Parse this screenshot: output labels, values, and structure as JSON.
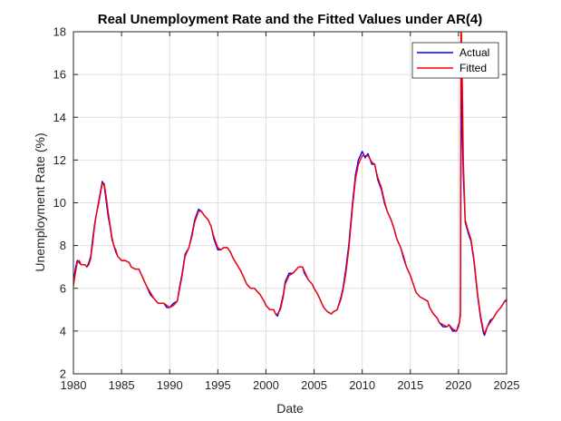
{
  "chart_data": {
    "type": "line",
    "title": "Real Unemployment Rate and the Fitted Values under AR(4)",
    "xlabel": "Date",
    "ylabel": "Unemployment Rate (%)",
    "xlim": [
      1980,
      2025
    ],
    "ylim": [
      2,
      18
    ],
    "xticks": [
      1980,
      1985,
      1990,
      1995,
      2000,
      2005,
      2010,
      2015,
      2020,
      2025
    ],
    "yticks": [
      2,
      4,
      6,
      8,
      10,
      12,
      14,
      16,
      18
    ],
    "grid": true,
    "legend_position": "top-right",
    "series": [
      {
        "name": "Actual",
        "color": "#0000ff",
        "points": [
          [
            1980.0,
            6.3
          ],
          [
            1980.2,
            6.9
          ],
          [
            1980.4,
            7.3
          ],
          [
            1980.6,
            7.2
          ],
          [
            1980.8,
            7.1
          ],
          [
            1981.0,
            7.1
          ],
          [
            1981.2,
            7.1
          ],
          [
            1981.4,
            7.0
          ],
          [
            1981.6,
            7.2
          ],
          [
            1981.8,
            7.5
          ],
          [
            1982.0,
            8.3
          ],
          [
            1982.2,
            9.0
          ],
          [
            1982.4,
            9.5
          ],
          [
            1982.6,
            10.0
          ],
          [
            1982.8,
            10.5
          ],
          [
            1983.0,
            11.0
          ],
          [
            1983.2,
            10.8
          ],
          [
            1983.4,
            10.1
          ],
          [
            1983.6,
            9.4
          ],
          [
            1983.8,
            8.9
          ],
          [
            1984.0,
            8.3
          ],
          [
            1984.2,
            8.0
          ],
          [
            1984.4,
            7.7
          ],
          [
            1984.6,
            7.5
          ],
          [
            1984.8,
            7.4
          ],
          [
            1985.0,
            7.3
          ],
          [
            1985.4,
            7.3
          ],
          [
            1985.8,
            7.2
          ],
          [
            1986.0,
            7.0
          ],
          [
            1986.4,
            6.9
          ],
          [
            1986.8,
            6.9
          ],
          [
            1987.0,
            6.7
          ],
          [
            1987.3,
            6.4
          ],
          [
            1987.6,
            6.1
          ],
          [
            1988.0,
            5.7
          ],
          [
            1988.4,
            5.5
          ],
          [
            1988.8,
            5.3
          ],
          [
            1989.0,
            5.3
          ],
          [
            1989.4,
            5.3
          ],
          [
            1989.7,
            5.1
          ],
          [
            1990.0,
            5.1
          ],
          [
            1990.4,
            5.3
          ],
          [
            1990.8,
            5.4
          ],
          [
            1991.0,
            6.0
          ],
          [
            1991.3,
            6.7
          ],
          [
            1991.6,
            7.6
          ],
          [
            1992.0,
            7.9
          ],
          [
            1992.3,
            8.5
          ],
          [
            1992.6,
            9.2
          ],
          [
            1993.0,
            9.7
          ],
          [
            1993.3,
            9.6
          ],
          [
            1993.6,
            9.4
          ],
          [
            1994.0,
            9.2
          ],
          [
            1994.3,
            8.9
          ],
          [
            1994.6,
            8.3
          ],
          [
            1995.0,
            7.8
          ],
          [
            1995.3,
            7.8
          ],
          [
            1995.6,
            7.9
          ],
          [
            1996.0,
            7.9
          ],
          [
            1996.3,
            7.7
          ],
          [
            1996.6,
            7.4
          ],
          [
            1997.0,
            7.1
          ],
          [
            1997.4,
            6.8
          ],
          [
            1997.8,
            6.4
          ],
          [
            1998.0,
            6.2
          ],
          [
            1998.4,
            6.0
          ],
          [
            1998.8,
            6.0
          ],
          [
            1999.0,
            5.9
          ],
          [
            1999.4,
            5.7
          ],
          [
            1999.8,
            5.4
          ],
          [
            2000.0,
            5.2
          ],
          [
            2000.4,
            5.0
          ],
          [
            2000.8,
            5.0
          ],
          [
            2001.0,
            4.8
          ],
          [
            2001.2,
            4.7
          ],
          [
            2001.5,
            5.1
          ],
          [
            2001.8,
            5.7
          ],
          [
            2002.0,
            6.3
          ],
          [
            2002.4,
            6.7
          ],
          [
            2002.8,
            6.7
          ],
          [
            2003.0,
            6.8
          ],
          [
            2003.4,
            7.0
          ],
          [
            2003.8,
            7.0
          ],
          [
            2004.0,
            6.7
          ],
          [
            2004.4,
            6.4
          ],
          [
            2004.8,
            6.2
          ],
          [
            2005.0,
            6.0
          ],
          [
            2005.4,
            5.7
          ],
          [
            2005.8,
            5.3
          ],
          [
            2006.0,
            5.1
          ],
          [
            2006.4,
            4.9
          ],
          [
            2006.8,
            4.8
          ],
          [
            2007.0,
            4.9
          ],
          [
            2007.4,
            5.0
          ],
          [
            2007.8,
            5.6
          ],
          [
            2008.0,
            6.0
          ],
          [
            2008.3,
            6.9
          ],
          [
            2008.6,
            8.0
          ],
          [
            2009.0,
            10.0
          ],
          [
            2009.3,
            11.3
          ],
          [
            2009.6,
            12.0
          ],
          [
            2010.0,
            12.4
          ],
          [
            2010.3,
            12.1
          ],
          [
            2010.6,
            12.3
          ],
          [
            2011.0,
            11.8
          ],
          [
            2011.3,
            11.8
          ],
          [
            2011.6,
            11.1
          ],
          [
            2012.0,
            10.6
          ],
          [
            2012.3,
            10.0
          ],
          [
            2012.6,
            9.6
          ],
          [
            2013.0,
            9.2
          ],
          [
            2013.3,
            8.8
          ],
          [
            2013.6,
            8.3
          ],
          [
            2014.0,
            7.9
          ],
          [
            2014.3,
            7.4
          ],
          [
            2014.6,
            7.0
          ],
          [
            2015.0,
            6.6
          ],
          [
            2015.3,
            6.2
          ],
          [
            2015.6,
            5.8
          ],
          [
            2016.0,
            5.6
          ],
          [
            2016.4,
            5.5
          ],
          [
            2016.8,
            5.4
          ],
          [
            2017.0,
            5.1
          ],
          [
            2017.4,
            4.8
          ],
          [
            2017.8,
            4.6
          ],
          [
            2018.0,
            4.4
          ],
          [
            2018.4,
            4.2
          ],
          [
            2018.8,
            4.2
          ],
          [
            2019.0,
            4.3
          ],
          [
            2019.4,
            4.0
          ],
          [
            2019.8,
            4.0
          ],
          [
            2020.0,
            4.3
          ],
          [
            2020.1,
            4.4
          ],
          [
            2020.2,
            4.9
          ],
          [
            2020.3,
            16.5
          ],
          [
            2020.4,
            13.2
          ],
          [
            2020.5,
            11.3
          ],
          [
            2020.7,
            9.1
          ],
          [
            2021.0,
            8.6
          ],
          [
            2021.3,
            8.2
          ],
          [
            2021.6,
            7.3
          ],
          [
            2022.0,
            5.6
          ],
          [
            2022.3,
            4.6
          ],
          [
            2022.6,
            3.9
          ],
          [
            2022.7,
            3.8
          ],
          [
            2023.0,
            4.2
          ],
          [
            2023.3,
            4.5
          ],
          [
            2023.6,
            4.6
          ],
          [
            2024.0,
            4.9
          ],
          [
            2024.4,
            5.1
          ],
          [
            2024.8,
            5.4
          ],
          [
            2025.0,
            5.4
          ]
        ]
      },
      {
        "name": "Fitted",
        "color": "#ff0000",
        "points": [
          [
            1980.0,
            6.1
          ],
          [
            1980.2,
            6.7
          ],
          [
            1980.4,
            7.2
          ],
          [
            1980.6,
            7.3
          ],
          [
            1980.8,
            7.1
          ],
          [
            1981.0,
            7.1
          ],
          [
            1981.2,
            7.1
          ],
          [
            1981.4,
            7.0
          ],
          [
            1981.6,
            7.1
          ],
          [
            1981.8,
            7.4
          ],
          [
            1982.0,
            8.1
          ],
          [
            1982.2,
            8.9
          ],
          [
            1982.4,
            9.5
          ],
          [
            1982.6,
            9.9
          ],
          [
            1982.8,
            10.4
          ],
          [
            1983.0,
            10.9
          ],
          [
            1983.2,
            10.9
          ],
          [
            1983.4,
            10.3
          ],
          [
            1983.6,
            9.6
          ],
          [
            1983.8,
            9.0
          ],
          [
            1984.0,
            8.4
          ],
          [
            1984.2,
            8.0
          ],
          [
            1984.4,
            7.8
          ],
          [
            1984.6,
            7.5
          ],
          [
            1984.8,
            7.4
          ],
          [
            1985.0,
            7.3
          ],
          [
            1985.4,
            7.3
          ],
          [
            1985.8,
            7.2
          ],
          [
            1986.0,
            7.0
          ],
          [
            1986.4,
            6.9
          ],
          [
            1986.8,
            6.9
          ],
          [
            1987.0,
            6.7
          ],
          [
            1987.3,
            6.4
          ],
          [
            1987.6,
            6.1
          ],
          [
            1988.0,
            5.8
          ],
          [
            1988.4,
            5.5
          ],
          [
            1988.8,
            5.3
          ],
          [
            1989.0,
            5.3
          ],
          [
            1989.4,
            5.3
          ],
          [
            1989.7,
            5.2
          ],
          [
            1990.0,
            5.1
          ],
          [
            1990.4,
            5.2
          ],
          [
            1990.8,
            5.4
          ],
          [
            1991.0,
            5.9
          ],
          [
            1991.3,
            6.6
          ],
          [
            1991.6,
            7.5
          ],
          [
            1992.0,
            7.9
          ],
          [
            1992.3,
            8.4
          ],
          [
            1992.6,
            9.1
          ],
          [
            1993.0,
            9.6
          ],
          [
            1993.3,
            9.6
          ],
          [
            1993.6,
            9.4
          ],
          [
            1994.0,
            9.2
          ],
          [
            1994.3,
            8.9
          ],
          [
            1994.6,
            8.4
          ],
          [
            1995.0,
            7.9
          ],
          [
            1995.3,
            7.8
          ],
          [
            1995.6,
            7.9
          ],
          [
            1996.0,
            7.9
          ],
          [
            1996.3,
            7.7
          ],
          [
            1996.6,
            7.4
          ],
          [
            1997.0,
            7.1
          ],
          [
            1997.4,
            6.8
          ],
          [
            1997.8,
            6.4
          ],
          [
            1998.0,
            6.2
          ],
          [
            1998.4,
            6.0
          ],
          [
            1998.8,
            6.0
          ],
          [
            1999.0,
            5.9
          ],
          [
            1999.4,
            5.7
          ],
          [
            1999.8,
            5.4
          ],
          [
            2000.0,
            5.2
          ],
          [
            2000.4,
            5.0
          ],
          [
            2000.8,
            5.0
          ],
          [
            2001.0,
            4.8
          ],
          [
            2001.2,
            4.8
          ],
          [
            2001.5,
            5.0
          ],
          [
            2001.8,
            5.6
          ],
          [
            2002.0,
            6.2
          ],
          [
            2002.4,
            6.6
          ],
          [
            2002.8,
            6.7
          ],
          [
            2003.0,
            6.8
          ],
          [
            2003.4,
            7.0
          ],
          [
            2003.8,
            7.0
          ],
          [
            2004.0,
            6.8
          ],
          [
            2004.4,
            6.4
          ],
          [
            2004.8,
            6.2
          ],
          [
            2005.0,
            6.0
          ],
          [
            2005.4,
            5.7
          ],
          [
            2005.8,
            5.3
          ],
          [
            2006.0,
            5.1
          ],
          [
            2006.4,
            4.9
          ],
          [
            2006.8,
            4.8
          ],
          [
            2007.0,
            4.9
          ],
          [
            2007.4,
            5.0
          ],
          [
            2007.8,
            5.5
          ],
          [
            2008.0,
            5.9
          ],
          [
            2008.3,
            6.7
          ],
          [
            2008.6,
            7.8
          ],
          [
            2009.0,
            9.8
          ],
          [
            2009.3,
            11.1
          ],
          [
            2009.6,
            11.8
          ],
          [
            2010.0,
            12.2
          ],
          [
            2010.3,
            12.2
          ],
          [
            2010.6,
            12.2
          ],
          [
            2011.0,
            11.9
          ],
          [
            2011.3,
            11.8
          ],
          [
            2011.6,
            11.2
          ],
          [
            2012.0,
            10.7
          ],
          [
            2012.3,
            10.1
          ],
          [
            2012.6,
            9.6
          ],
          [
            2013.0,
            9.2
          ],
          [
            2013.3,
            8.8
          ],
          [
            2013.6,
            8.3
          ],
          [
            2014.0,
            7.9
          ],
          [
            2014.3,
            7.5
          ],
          [
            2014.6,
            7.0
          ],
          [
            2015.0,
            6.6
          ],
          [
            2015.3,
            6.2
          ],
          [
            2015.6,
            5.8
          ],
          [
            2016.0,
            5.6
          ],
          [
            2016.4,
            5.5
          ],
          [
            2016.8,
            5.4
          ],
          [
            2017.0,
            5.1
          ],
          [
            2017.4,
            4.8
          ],
          [
            2017.8,
            4.6
          ],
          [
            2018.0,
            4.4
          ],
          [
            2018.4,
            4.3
          ],
          [
            2018.8,
            4.2
          ],
          [
            2019.0,
            4.3
          ],
          [
            2019.4,
            4.1
          ],
          [
            2019.8,
            4.0
          ],
          [
            2020.0,
            4.2
          ],
          [
            2020.1,
            4.4
          ],
          [
            2020.2,
            4.7
          ],
          [
            2020.25,
            18.0
          ],
          [
            2020.3,
            18.0
          ],
          [
            2020.4,
            15.5
          ],
          [
            2020.5,
            12.0
          ],
          [
            2020.7,
            9.2
          ],
          [
            2021.0,
            8.7
          ],
          [
            2021.3,
            8.3
          ],
          [
            2021.6,
            7.4
          ],
          [
            2022.0,
            5.7
          ],
          [
            2022.3,
            4.7
          ],
          [
            2022.6,
            4.0
          ],
          [
            2022.7,
            3.9
          ],
          [
            2023.0,
            4.2
          ],
          [
            2023.3,
            4.4
          ],
          [
            2023.6,
            4.6
          ],
          [
            2024.0,
            4.9
          ],
          [
            2024.4,
            5.1
          ],
          [
            2024.8,
            5.4
          ],
          [
            2025.0,
            5.5
          ]
        ]
      }
    ]
  }
}
